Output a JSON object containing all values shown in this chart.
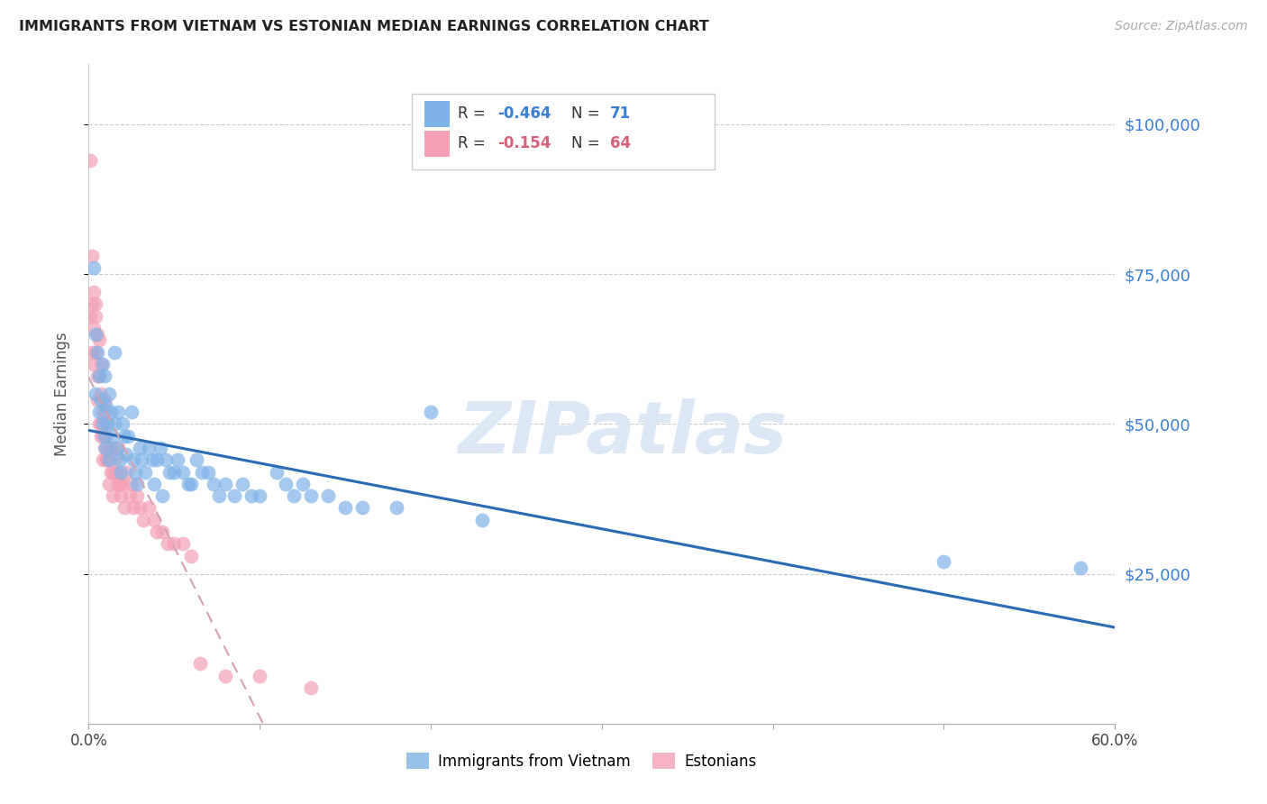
{
  "title": "IMMIGRANTS FROM VIETNAM VS ESTONIAN MEDIAN EARNINGS CORRELATION CHART",
  "source": "Source: ZipAtlas.com",
  "ylabel": "Median Earnings",
  "y_tick_labels": [
    "$25,000",
    "$50,000",
    "$75,000",
    "$100,000"
  ],
  "y_tick_values": [
    25000,
    50000,
    75000,
    100000
  ],
  "ylim": [
    0,
    110000
  ],
  "xlim": [
    0.0,
    0.6
  ],
  "blue_color": "#7fb3e8",
  "pink_color": "#f4a0b5",
  "blue_line_color": "#2a6bb5",
  "pink_line_color": "#d4a0b0",
  "background_color": "#ffffff",
  "blue_scatter_x": [
    0.003,
    0.004,
    0.004,
    0.005,
    0.006,
    0.006,
    0.007,
    0.008,
    0.008,
    0.009,
    0.009,
    0.01,
    0.01,
    0.011,
    0.012,
    0.012,
    0.013,
    0.014,
    0.015,
    0.015,
    0.016,
    0.017,
    0.018,
    0.019,
    0.02,
    0.021,
    0.022,
    0.023,
    0.025,
    0.026,
    0.027,
    0.028,
    0.03,
    0.031,
    0.033,
    0.035,
    0.037,
    0.038,
    0.04,
    0.042,
    0.043,
    0.045,
    0.047,
    0.05,
    0.052,
    0.055,
    0.058,
    0.06,
    0.063,
    0.066,
    0.07,
    0.073,
    0.076,
    0.08,
    0.085,
    0.09,
    0.095,
    0.1,
    0.11,
    0.115,
    0.12,
    0.125,
    0.13,
    0.14,
    0.15,
    0.16,
    0.18,
    0.2,
    0.23,
    0.5,
    0.58
  ],
  "blue_scatter_y": [
    76000,
    65000,
    55000,
    62000,
    58000,
    52000,
    54000,
    60000,
    50000,
    58000,
    48000,
    53000,
    46000,
    50000,
    55000,
    44000,
    52000,
    48000,
    62000,
    50000,
    46000,
    52000,
    44000,
    42000,
    50000,
    48000,
    45000,
    48000,
    52000,
    44000,
    42000,
    40000,
    46000,
    44000,
    42000,
    46000,
    44000,
    40000,
    44000,
    46000,
    38000,
    44000,
    42000,
    42000,
    44000,
    42000,
    40000,
    40000,
    44000,
    42000,
    42000,
    40000,
    38000,
    40000,
    38000,
    40000,
    38000,
    38000,
    42000,
    40000,
    38000,
    40000,
    38000,
    38000,
    36000,
    36000,
    36000,
    52000,
    34000,
    27000,
    26000
  ],
  "pink_scatter_x": [
    0.001,
    0.001,
    0.002,
    0.002,
    0.002,
    0.003,
    0.003,
    0.003,
    0.004,
    0.004,
    0.004,
    0.005,
    0.005,
    0.005,
    0.006,
    0.006,
    0.006,
    0.007,
    0.007,
    0.007,
    0.007,
    0.008,
    0.008,
    0.008,
    0.009,
    0.009,
    0.01,
    0.01,
    0.01,
    0.011,
    0.011,
    0.012,
    0.012,
    0.013,
    0.013,
    0.014,
    0.014,
    0.015,
    0.016,
    0.017,
    0.017,
    0.018,
    0.019,
    0.02,
    0.021,
    0.022,
    0.024,
    0.025,
    0.026,
    0.028,
    0.03,
    0.032,
    0.035,
    0.038,
    0.04,
    0.043,
    0.046,
    0.05,
    0.055,
    0.06,
    0.065,
    0.08,
    0.1,
    0.13
  ],
  "pink_scatter_y": [
    94000,
    68000,
    78000,
    70000,
    62000,
    72000,
    66000,
    60000,
    68000,
    62000,
    70000,
    65000,
    58000,
    54000,
    64000,
    58000,
    50000,
    60000,
    55000,
    50000,
    48000,
    52000,
    48000,
    44000,
    54000,
    46000,
    52000,
    48000,
    44000,
    50000,
    44000,
    46000,
    40000,
    46000,
    42000,
    38000,
    42000,
    44000,
    42000,
    46000,
    40000,
    40000,
    38000,
    40000,
    36000,
    42000,
    38000,
    40000,
    36000,
    38000,
    36000,
    34000,
    36000,
    34000,
    32000,
    32000,
    30000,
    30000,
    30000,
    28000,
    10000,
    8000,
    8000,
    6000
  ]
}
